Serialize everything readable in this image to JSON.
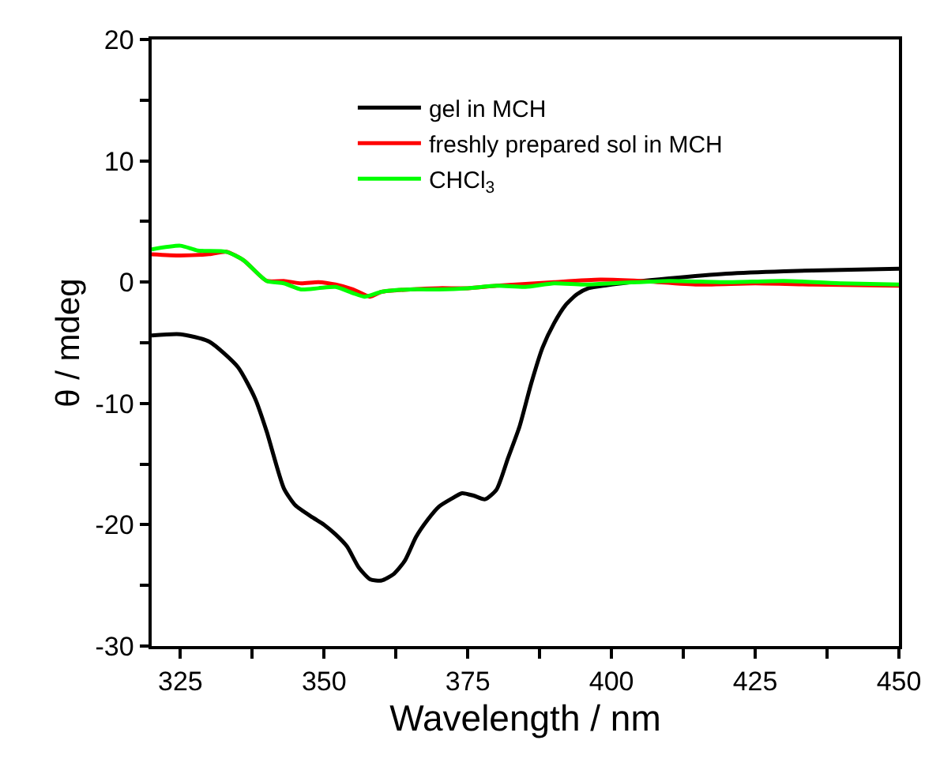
{
  "chart_data": {
    "type": "line",
    "xlabel": "Wavelength / nm",
    "ylabel": "θ / mdeg",
    "xlim": [
      320,
      450
    ],
    "xticks": [
      325,
      {
        "value": 337.5,
        "label": null
      },
      350,
      {
        "value": 362.5,
        "label": null
      },
      375,
      {
        "value": 387.5,
        "label": null
      },
      400,
      {
        "value": 412.5,
        "label": null
      },
      425,
      {
        "value": 437.5,
        "label": null
      },
      450
    ],
    "ylim": [
      -30,
      20
    ],
    "yticks": [
      -30,
      {
        "value": -25,
        "label": null
      },
      -20,
      {
        "value": -15,
        "label": null
      },
      -10,
      {
        "value": -5,
        "label": null
      },
      0,
      {
        "value": 5,
        "label": null
      },
      10,
      {
        "value": 15,
        "label": null
      },
      20
    ],
    "legend": "top",
    "marker": "none",
    "line_style": "solid",
    "series": [
      {
        "name": "gel in MCH",
        "color": "#000000",
        "x": [
          320,
          325,
          330,
          335,
          338,
          340,
          343,
          345,
          348,
          350,
          352,
          354,
          356,
          358,
          360,
          362,
          364,
          366,
          368,
          370,
          372,
          374,
          376,
          378,
          380,
          382,
          384,
          386,
          388,
          390,
          392,
          394,
          396,
          400,
          410,
          420,
          430,
          440,
          450
        ],
        "values": [
          -4.4,
          -4.3,
          -4.9,
          -7.0,
          -9.6,
          -12.3,
          -17.0,
          -18.4,
          -19.4,
          -20.0,
          -20.8,
          -21.8,
          -23.5,
          -24.5,
          -24.6,
          -24.1,
          -23.0,
          -21.0,
          -19.6,
          -18.5,
          -17.9,
          -17.4,
          -17.6,
          -17.9,
          -17.1,
          -14.5,
          -11.9,
          -8.4,
          -5.4,
          -3.4,
          -1.9,
          -1.0,
          -0.5,
          -0.2,
          0.3,
          0.7,
          0.9,
          1.0,
          1.1
        ]
      },
      {
        "name": "freshly prepared sol in MCH",
        "color": "#ff0000",
        "x": [
          320,
          325,
          330,
          333,
          336,
          340,
          343,
          346,
          349,
          352,
          355,
          358,
          360,
          365,
          370,
          375,
          380,
          390,
          398,
          405,
          415,
          425,
          435,
          450
        ],
        "values": [
          2.3,
          2.2,
          2.3,
          2.5,
          1.8,
          0.1,
          0.1,
          -0.1,
          0.0,
          -0.2,
          -0.6,
          -1.2,
          -0.8,
          -0.6,
          -0.5,
          -0.5,
          -0.3,
          0.0,
          0.2,
          0.1,
          -0.2,
          -0.1,
          -0.2,
          -0.3
        ]
      },
      {
        "name": "CHCl$_{3}$",
        "color": "#00ff00",
        "x": [
          320,
          325,
          328,
          333,
          336,
          340,
          343,
          346,
          349,
          352,
          355,
          357,
          360,
          365,
          370,
          375,
          380,
          385,
          390,
          395,
          400,
          410,
          420,
          430,
          440,
          450
        ],
        "values": [
          2.7,
          3.0,
          2.6,
          2.5,
          1.8,
          0.1,
          -0.1,
          -0.6,
          -0.5,
          -0.4,
          -0.9,
          -1.2,
          -0.8,
          -0.6,
          -0.6,
          -0.5,
          -0.3,
          -0.4,
          -0.1,
          -0.2,
          -0.1,
          0.1,
          0.0,
          0.1,
          -0.1,
          -0.2
        ]
      }
    ]
  }
}
